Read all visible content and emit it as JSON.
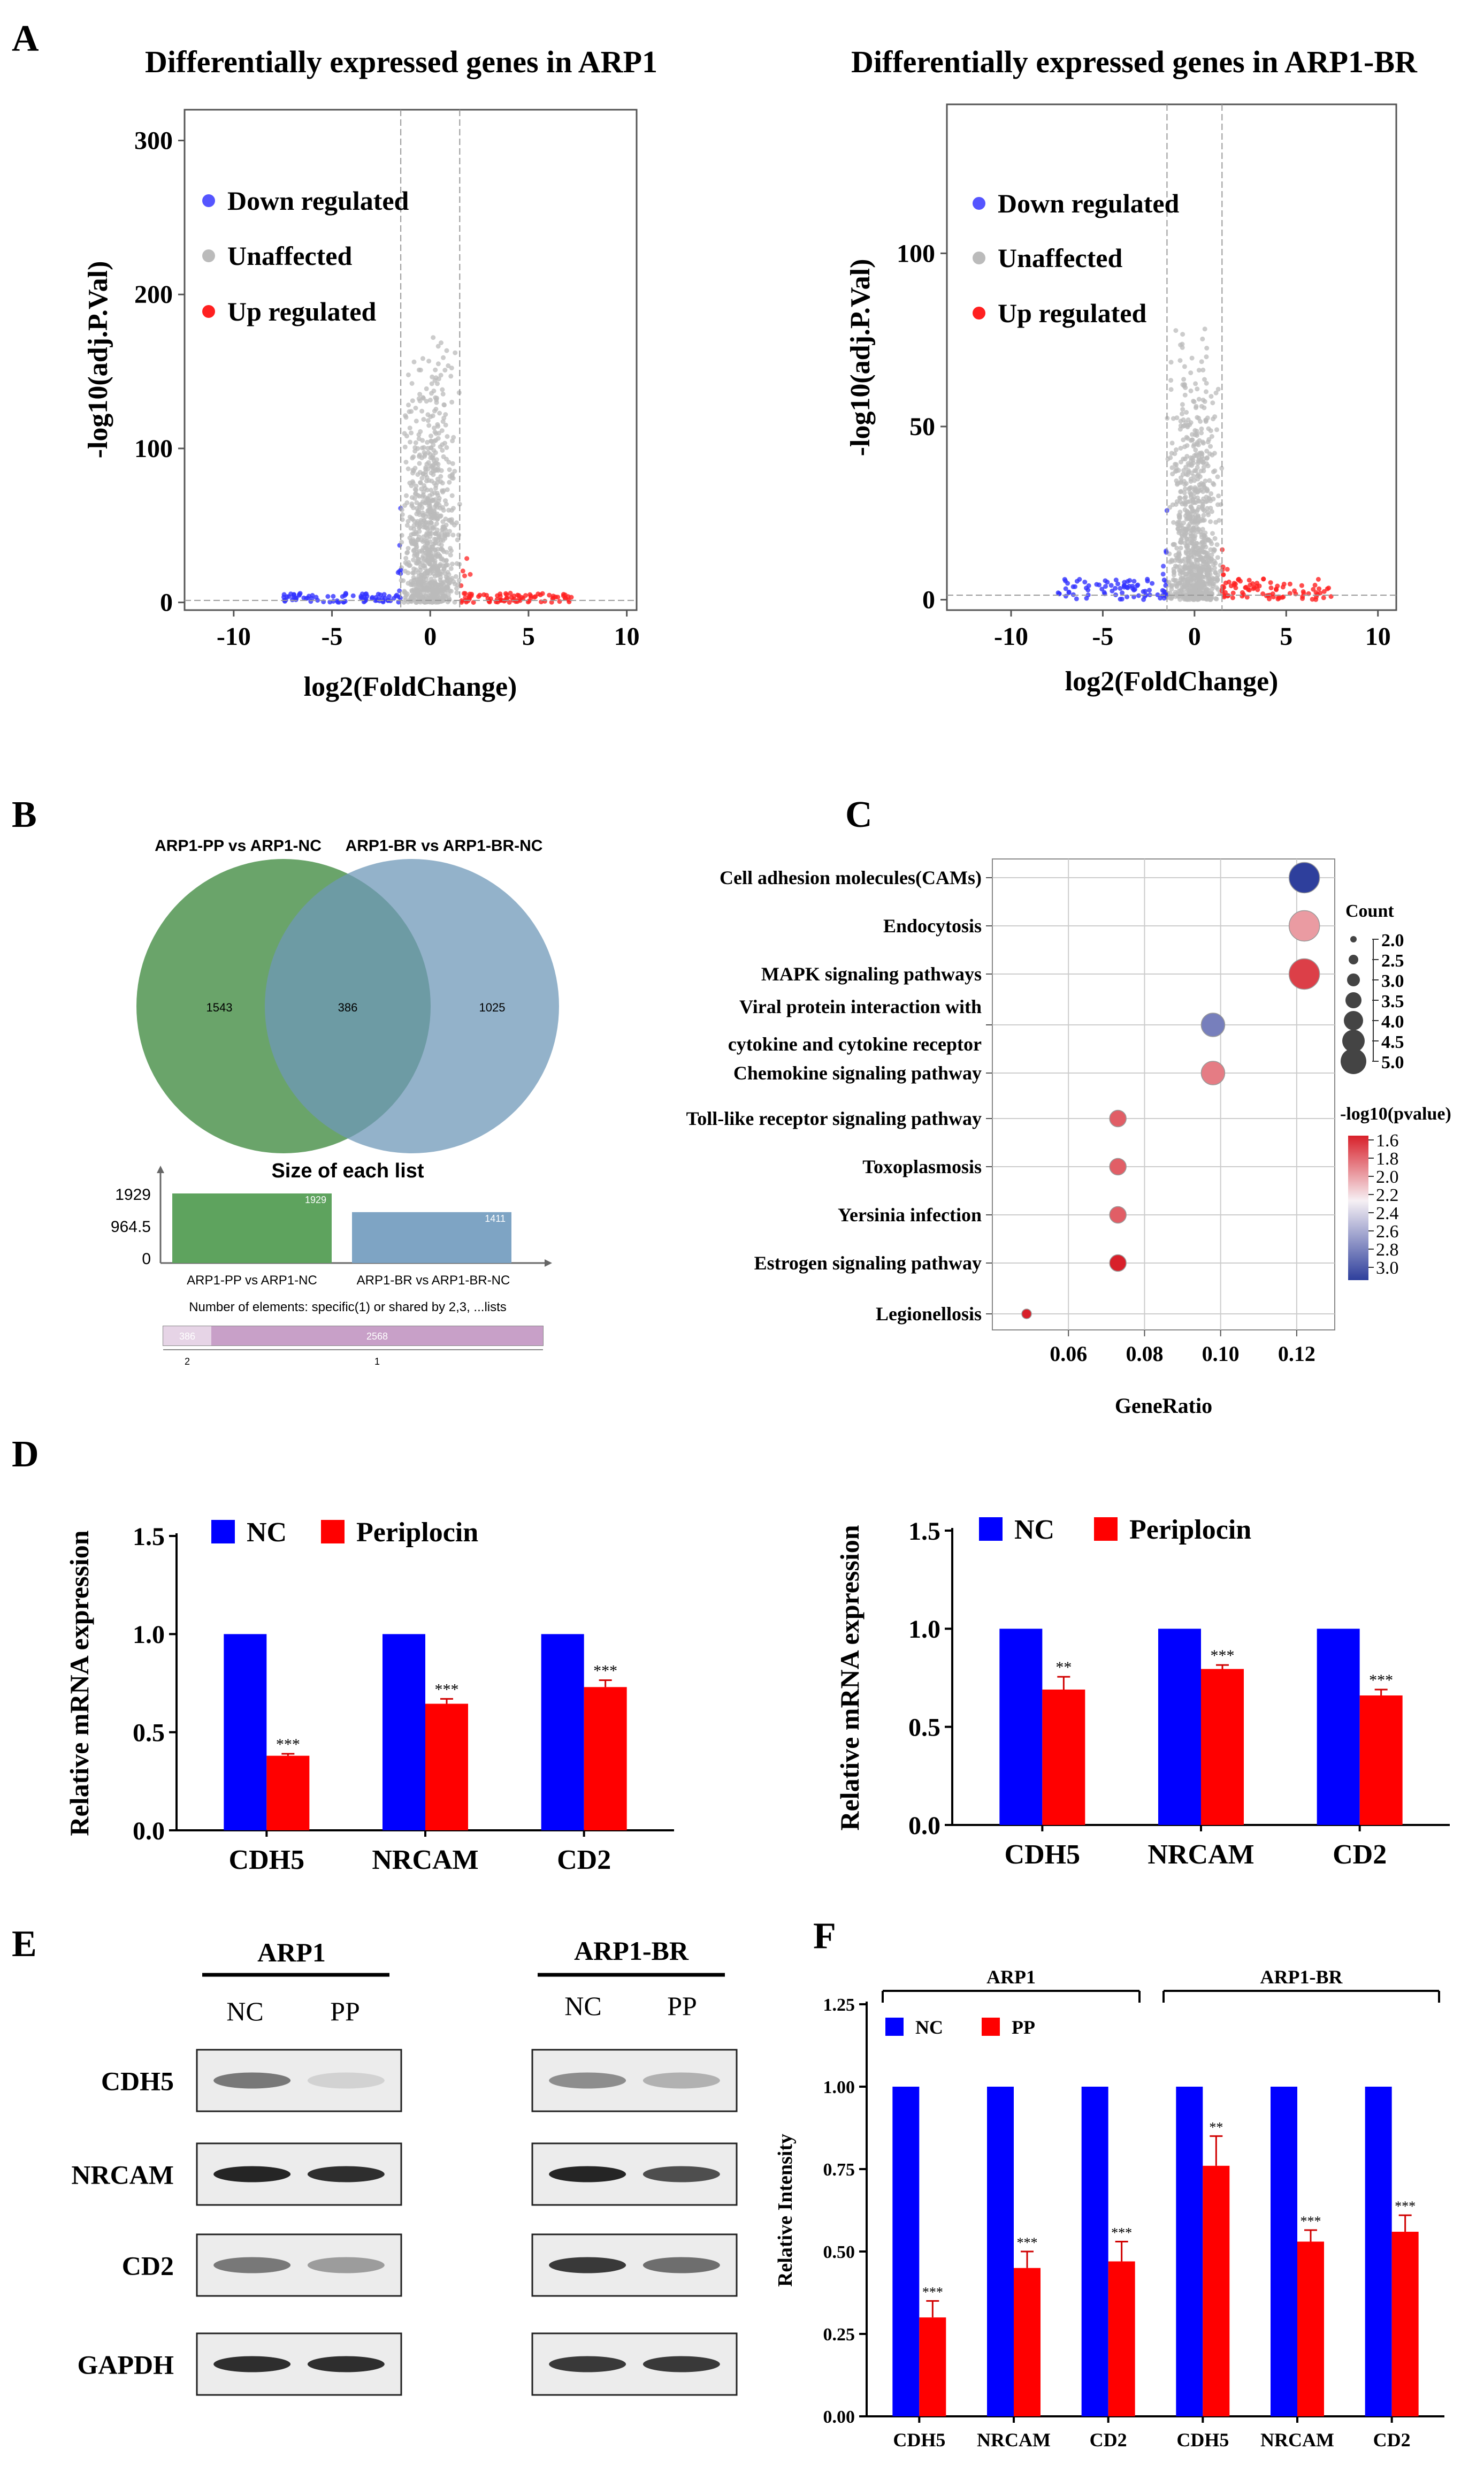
{
  "panels": {
    "A": "A",
    "B": "B",
    "C": "C",
    "D": "D",
    "E": "E",
    "F": "F"
  },
  "colors": {
    "down": "#3333ff",
    "up": "#ff2020",
    "unaffected": "#bbbbbb",
    "nc": "#0000ff",
    "pp": "#ff0000",
    "venn_left": "#5a9a5a",
    "venn_right": "#6f98b8",
    "venn_overlap": "#4f7a6c",
    "bar_left": "#5ea35e",
    "bar_right": "#7ea4c4",
    "upset": "#c8a0c8"
  },
  "volcano": [
    {
      "title": "Differentially expressed genes in ARP1",
      "xlabel": "log2(FoldChange)",
      "ylabel": "-log10(adj.P.Val)",
      "xlim": [
        -12.5,
        10.5
      ],
      "ylim": [
        -5,
        320
      ],
      "xticks": [
        -10,
        -5,
        0,
        5,
        10
      ],
      "yticks": [
        0,
        100,
        200,
        300
      ],
      "vlines": [
        -1.5,
        1.5
      ],
      "legend": [
        {
          "label": "Down regulated",
          "key": "down"
        },
        {
          "label": "Unaffected",
          "key": "unaffected"
        },
        {
          "label": "Up regulated",
          "key": "up"
        }
      ]
    },
    {
      "title": "Differentially expressed genes in ARP1-BR",
      "xlabel": "log2(FoldChange)",
      "ylabel": "-log10(adj.P.Val)",
      "xlim": [
        -13.5,
        11
      ],
      "ylim": [
        -3,
        143
      ],
      "xticks": [
        -10,
        -5,
        0,
        5,
        10
      ],
      "yticks": [
        0,
        50,
        100
      ],
      "vlines": [
        -1.5,
        1.5
      ],
      "legend": [
        {
          "label": "Down regulated",
          "key": "down"
        },
        {
          "label": "Unaffected",
          "key": "unaffected"
        },
        {
          "label": "Up regulated",
          "key": "up"
        }
      ]
    }
  ],
  "venn": {
    "left_label": "ARP1-PP vs ARP1-NC",
    "right_label": "ARP1-BR vs ARP1-BR-NC",
    "left_only": "1543",
    "overlap": "386",
    "right_only": "1025",
    "size_title": "Size of each list",
    "size_ticks": [
      "1929",
      "964.5",
      "0"
    ],
    "bars": [
      {
        "label": "ARP1-PP vs ARP1-NC",
        "value": 1929,
        "text": "1929"
      },
      {
        "label": "ARP1-BR vs ARP1-BR-NC",
        "value": 1411,
        "text": "1411"
      }
    ],
    "elements_title": "Number of elements: specific(1) or shared by 2,3, ...lists",
    "upset": [
      {
        "value": 386,
        "text": "386",
        "axis": "2"
      },
      {
        "value": 2568,
        "text": "2568",
        "axis": "1"
      }
    ]
  },
  "chart_data": [
    {
      "type": "scatter",
      "panel": "C",
      "title": "",
      "xlabel": "GeneRatio",
      "ylabel": "",
      "xlim": [
        0.04,
        0.13
      ],
      "xticks": [
        "0.06",
        "0.08",
        "0.10",
        "0.12"
      ],
      "categories": [
        "Cell adhesion molecules(CAMs)",
        "Endocytosis",
        "MAPK signaling pathways",
        "Viral protein interaction with cytokine and cytokine receptor",
        "Chemokine signaling pathway",
        "Toll-like receptor signaling pathway",
        "Toxoplasmosis",
        "Yersinia infection",
        "Estrogen signaling pathway",
        "Legionellosis"
      ],
      "x": [
        0.122,
        0.122,
        0.122,
        0.098,
        0.098,
        0.073,
        0.073,
        0.073,
        0.073,
        0.049
      ],
      "count": [
        5,
        5,
        5,
        4,
        4,
        3,
        3,
        3,
        3,
        2
      ],
      "neg_log10_pvalue": [
        3.1,
        2.0,
        1.7,
        2.8,
        1.9,
        1.8,
        1.8,
        1.8,
        1.6,
        1.6
      ],
      "size_legend_title": "Count",
      "size_legend": [
        "2.0",
        "2.5",
        "3.0",
        "3.5",
        "4.0",
        "4.5",
        "5.0"
      ],
      "color_legend_title": "-log10(pvalue)",
      "color_legend": [
        "1.6",
        "1.8",
        "2.0",
        "2.2",
        "2.4",
        "2.6",
        "2.8",
        "3.0"
      ]
    },
    {
      "type": "bar",
      "panel": "D-left",
      "ylabel": "Relative mRNA expression",
      "categories": [
        "CDH5",
        "NRCAM",
        "CD2"
      ],
      "ylim": [
        0,
        1.5
      ],
      "yticks": [
        "0.0",
        "0.5",
        "1.0",
        "1.5"
      ],
      "series": [
        {
          "name": "NC",
          "values": [
            1.0,
            1.0,
            1.0
          ]
        },
        {
          "name": "Periplocin",
          "values": [
            0.38,
            0.645,
            0.73
          ],
          "errors": [
            0.01,
            0.025,
            0.035
          ],
          "sig": [
            "***",
            "***",
            "***"
          ]
        }
      ]
    },
    {
      "type": "bar",
      "panel": "D-right",
      "ylabel": "Relative mRNA expression",
      "categories": [
        "CDH5",
        "NRCAM",
        "CD2"
      ],
      "ylim": [
        0,
        1.5
      ],
      "yticks": [
        "0.0",
        "0.5",
        "1.0",
        "1.5"
      ],
      "series": [
        {
          "name": "NC",
          "values": [
            1.0,
            1.0,
            1.0
          ]
        },
        {
          "name": "Periplocin",
          "values": [
            0.69,
            0.795,
            0.66
          ],
          "errors": [
            0.065,
            0.02,
            0.03
          ],
          "sig": [
            "**",
            "***",
            "***"
          ]
        }
      ]
    },
    {
      "type": "bar",
      "panel": "F",
      "ylabel": "Relative Intensity",
      "categories": [
        "CDH5",
        "NRCAM",
        "CD2",
        "CDH5",
        "NRCAM",
        "CD2"
      ],
      "group_labels": [
        "ARP1",
        "ARP1-BR"
      ],
      "ylim": [
        0,
        1.25
      ],
      "yticks": [
        "0.00",
        "0.25",
        "0.50",
        "0.75",
        "1.00",
        "1.25"
      ],
      "series": [
        {
          "name": "NC",
          "values": [
            1,
            1,
            1,
            1,
            1,
            1
          ]
        },
        {
          "name": "PP",
          "values": [
            0.3,
            0.45,
            0.47,
            0.76,
            0.53,
            0.56
          ],
          "errors": [
            0.05,
            0.05,
            0.06,
            0.09,
            0.035,
            0.05
          ],
          "sig": [
            "***",
            "***",
            "***",
            "**",
            "***",
            "***"
          ]
        }
      ]
    }
  ],
  "blots": {
    "groups": [
      {
        "title": "ARP1",
        "lanes": [
          "NC",
          "PP"
        ]
      },
      {
        "title": "ARP1-BR",
        "lanes": [
          "NC",
          "PP"
        ]
      }
    ],
    "rows": [
      "CDH5",
      "NRCAM",
      "CD2",
      "GAPDH"
    ]
  }
}
